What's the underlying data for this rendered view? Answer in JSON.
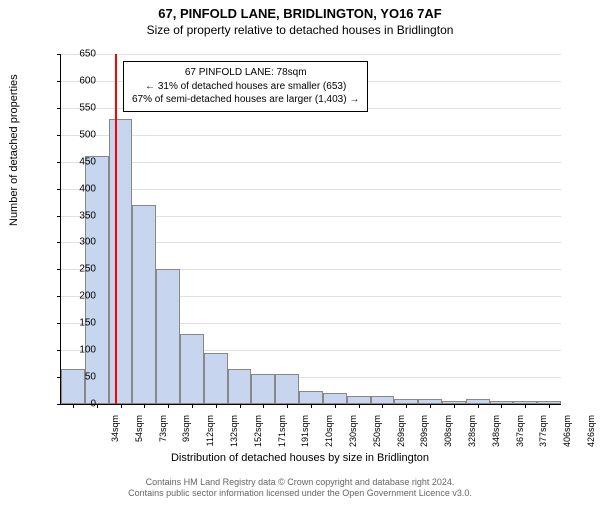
{
  "header": {
    "line1": "67, PINFOLD LANE, BRIDLINGTON, YO16 7AF",
    "line2": "Size of property relative to detached houses in Bridlington"
  },
  "chart": {
    "type": "histogram",
    "y_axis": {
      "label": "Number of detached properties",
      "min": 0,
      "max": 650,
      "tick_step": 50,
      "label_fontsize": 11,
      "tick_fontsize": 10
    },
    "x_axis": {
      "label": "Distribution of detached houses by size in Bridlington",
      "labels": [
        "34sqm",
        "54sqm",
        "73sqm",
        "93sqm",
        "112sqm",
        "132sqm",
        "152sqm",
        "171sqm",
        "191sqm",
        "210sqm",
        "230sqm",
        "250sqm",
        "269sqm",
        "289sqm",
        "308sqm",
        "328sqm",
        "348sqm",
        "367sqm",
        "377sqm",
        "406sqm",
        "426sqm"
      ],
      "label_fontsize": 11,
      "tick_fontsize": 9
    },
    "bars": {
      "values": [
        65,
        460,
        530,
        370,
        250,
        130,
        95,
        65,
        55,
        55,
        25,
        20,
        15,
        15,
        10,
        10,
        6,
        10,
        6,
        6,
        6
      ],
      "fill_color": "#c7d5ef",
      "border_color": "#888888",
      "width_fraction": 1.0
    },
    "marker_line": {
      "position_index": 2.25,
      "color": "#ff0000",
      "width": 2
    },
    "annotation": {
      "line1": "67 PINFOLD LANE: 78sqm",
      "line2": "← 31% of detached houses are smaller (653)",
      "line3": "67% of semi-detached houses are larger (1,403) →",
      "border_color": "#000000",
      "background": "#ffffff",
      "fontsize": 10
    },
    "plot_fontsize": 12,
    "background_color": "#ffffff",
    "grid_color": "#e0e0e0"
  },
  "footer": {
    "line1": "Contains HM Land Registry data © Crown copyright and database right 2024.",
    "line2": "Contains public sector information licensed under the Open Government Licence v3.0.",
    "color": "#666666",
    "fontsize": 9
  }
}
